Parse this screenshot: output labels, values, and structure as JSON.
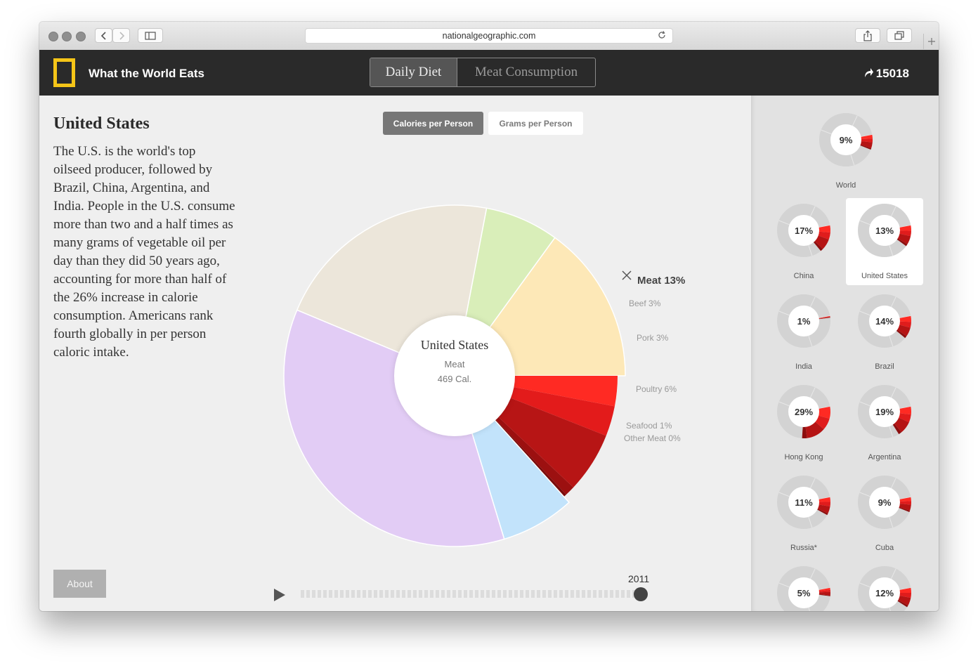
{
  "browser": {
    "url": "nationalgeographic.com"
  },
  "header": {
    "title": "What the World Eats",
    "tabs": [
      {
        "label": "Daily Diet",
        "active": true
      },
      {
        "label": "Meat Consumption",
        "active": false
      }
    ],
    "share_count": "15018",
    "logo_color": "#f5c518"
  },
  "main": {
    "country": "United States",
    "description": "The U.S. is the world's top oilseed producer, followed by Brazil, China, Argentina, and India. People in the U.S. consume more than two and a half times as many grams of vegetable oil per day than they did 50 years ago, accounting for more than half of the 26% increase in calorie consumption. Americans rank fourth globally in per person caloric intake.",
    "metric_tabs": [
      {
        "label": "Calories per Person",
        "active": true
      },
      {
        "label": "Grams per Person",
        "active": false
      }
    ],
    "center": {
      "country": "United States",
      "category": "Meat",
      "value": "469 Cal."
    },
    "meat_label": "Meat 13%",
    "sub_labels": {
      "beef": "Beef 3%",
      "pork": "Pork 3%",
      "poultry": "Poultry 6%",
      "seafood": "Seafood 1%",
      "other": "Other Meat 0%"
    },
    "about_label": "About",
    "year": "2011"
  },
  "chart_data": {
    "type": "pie",
    "title": "United States",
    "unit": "percent of daily calories",
    "slices": [
      {
        "name": "",
        "value": 7,
        "color": "#d9eeb9"
      },
      {
        "name": "",
        "value": 15,
        "color": "#fde8b7"
      },
      {
        "name": "Beef",
        "value": 3,
        "color": "#ff2a23",
        "group": "Meat"
      },
      {
        "name": "Pork",
        "value": 3,
        "color": "#e31b1b",
        "group": "Meat"
      },
      {
        "name": "Poultry",
        "value": 6,
        "color": "#b71515",
        "group": "Meat"
      },
      {
        "name": "Seafood",
        "value": 1,
        "color": "#9c1010",
        "group": "Meat"
      },
      {
        "name": "Other Meat",
        "value": 0.3,
        "color": "#7a0b0b",
        "group": "Meat"
      },
      {
        "name": "",
        "value": 7,
        "color": "#c2e3fb"
      },
      {
        "name": "",
        "value": 36,
        "color": "#e2ccf5"
      },
      {
        "name": "",
        "value": 21.7,
        "color": "#ece6da"
      }
    ],
    "highlight": "Meat"
  },
  "sidebar": {
    "items": [
      {
        "name": "World",
        "pct": "9%",
        "value": 9,
        "selected": false
      },
      {
        "name": "China",
        "pct": "17%",
        "value": 17,
        "selected": false
      },
      {
        "name": "United States",
        "pct": "13%",
        "value": 13,
        "selected": true
      },
      {
        "name": "India",
        "pct": "1%",
        "value": 1,
        "selected": false
      },
      {
        "name": "Brazil",
        "pct": "14%",
        "value": 14,
        "selected": false
      },
      {
        "name": "Hong Kong",
        "pct": "29%",
        "value": 29,
        "selected": false
      },
      {
        "name": "Argentina",
        "pct": "19%",
        "value": 19,
        "selected": false
      },
      {
        "name": "Russia*",
        "pct": "11%",
        "value": 11,
        "selected": false
      },
      {
        "name": "Cuba",
        "pct": "9%",
        "value": 9,
        "selected": false
      },
      {
        "name": "",
        "pct": "5%",
        "value": 5,
        "selected": false
      },
      {
        "name": "",
        "pct": "12%",
        "value": 12,
        "selected": false
      }
    ]
  }
}
